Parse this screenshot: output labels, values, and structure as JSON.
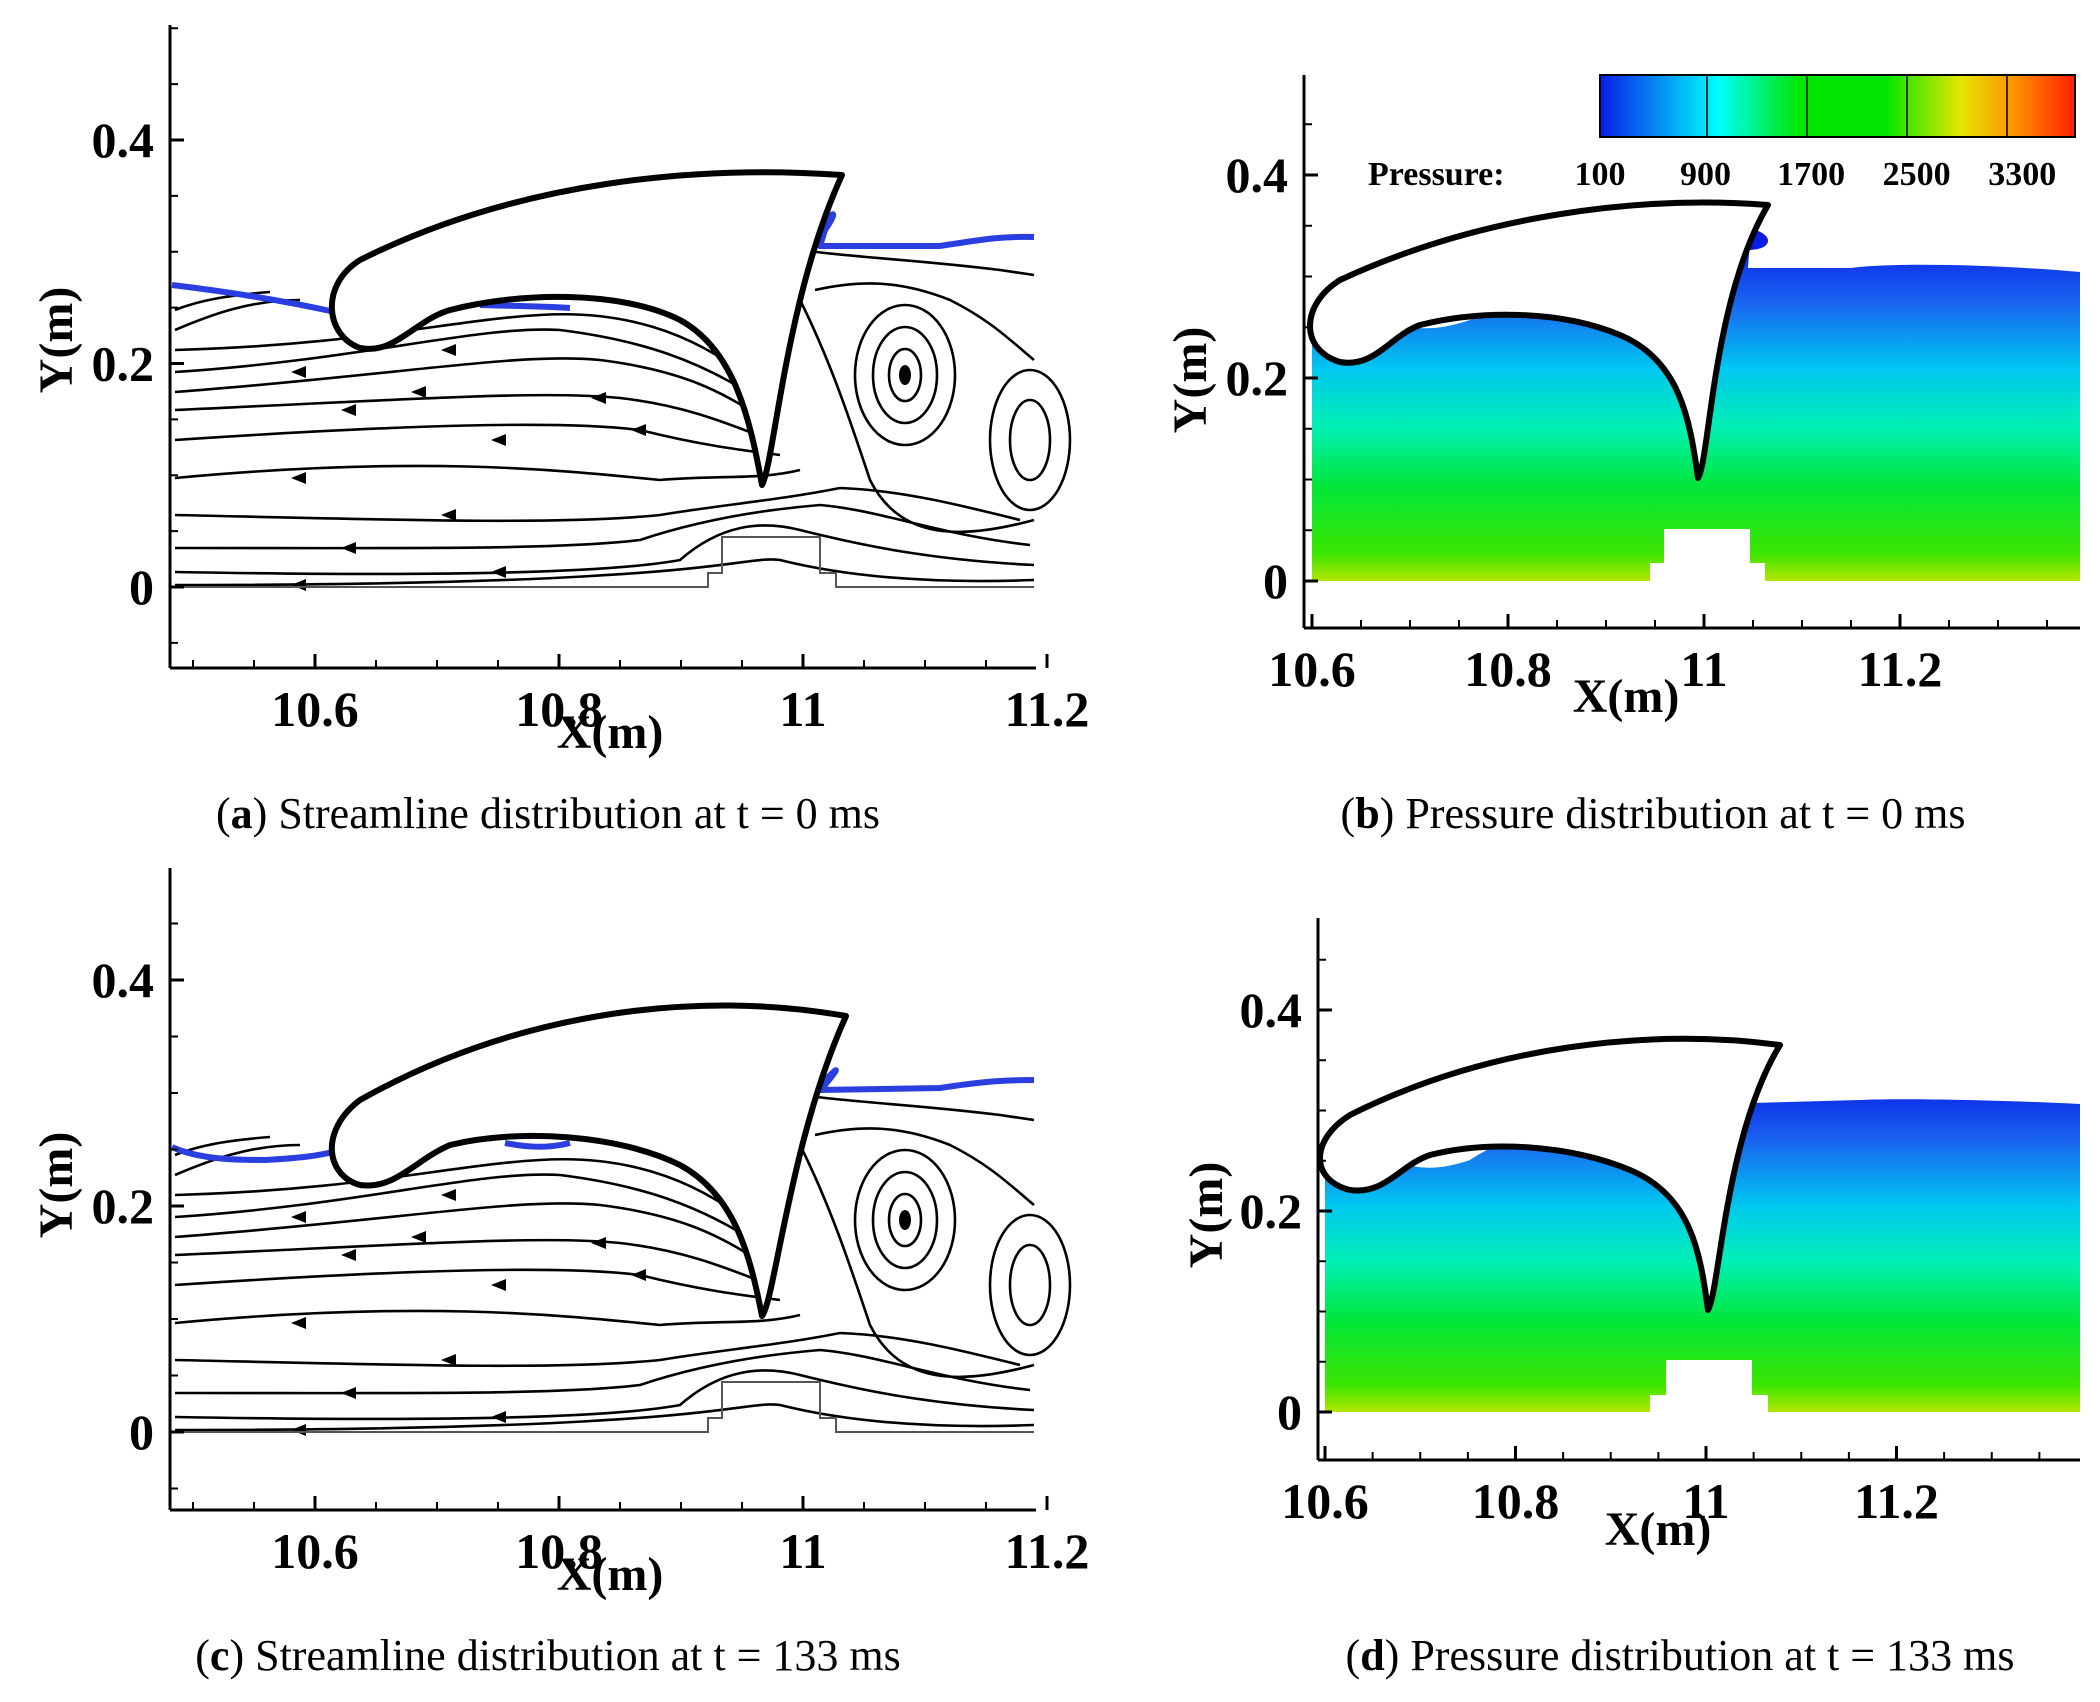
{
  "chart_data": [
    {
      "id": "a",
      "type": "streamline",
      "xlim": [
        10.47,
        11.23
      ],
      "ylim": [
        -0.07,
        0.49
      ],
      "xticks": [
        "10.6",
        "10.8",
        "11",
        "11.2"
      ],
      "yticks": [
        "0",
        "0.2",
        "0.4"
      ],
      "xlabel": "X(m)",
      "ylabel": "Y(m)",
      "caption_letter": "a",
      "caption_text": " Streamline distribution at t = 0 ms",
      "time_ms": 0
    },
    {
      "id": "b",
      "type": "contour",
      "variable": "Pressure",
      "xlim": [
        10.6,
        11.36
      ],
      "ylim": [
        -0.05,
        0.5
      ],
      "xticks": [
        "10.6",
        "10.8",
        "11",
        "11.2"
      ],
      "yticks": [
        "0",
        "0.2",
        "0.4"
      ],
      "xlabel": "X(m)",
      "ylabel": "Y(m)",
      "colorbar_title": "Pressure:",
      "colorbar_ticks": [
        "100",
        "900",
        "1700",
        "2500",
        "3300"
      ],
      "colorbar_range": [
        100,
        3700
      ],
      "colors": {
        "low": "#0a1ee6",
        "mid": "#00ffd2",
        "high_mid": "#00e600",
        "high": "#ff2b00"
      },
      "caption_letter": "b",
      "caption_text": " Pressure distribution at t = 0 ms",
      "time_ms": 0
    },
    {
      "id": "c",
      "type": "streamline",
      "xlim": [
        10.47,
        11.23
      ],
      "ylim": [
        -0.07,
        0.49
      ],
      "xticks": [
        "10.6",
        "10.8",
        "11",
        "11.2"
      ],
      "yticks": [
        "0",
        "0.2",
        "0.4"
      ],
      "xlabel": "X(m)",
      "ylabel": "Y(m)",
      "caption_letter": "c",
      "caption_text": " Streamline distribution at t = 133 ms",
      "time_ms": 133
    },
    {
      "id": "d",
      "type": "contour",
      "variable": "Pressure",
      "xlim": [
        10.6,
        11.36
      ],
      "ylim": [
        -0.05,
        0.5
      ],
      "xticks": [
        "10.6",
        "10.8",
        "11",
        "11.2"
      ],
      "yticks": [
        "0",
        "0.2",
        "0.4"
      ],
      "xlabel": "X(m)",
      "ylabel": "Y(m)",
      "caption_letter": "d",
      "caption_text": " Pressure distribution at t = 133 ms",
      "time_ms": 133
    }
  ],
  "colors": {
    "free_surface": "#2b3fe0",
    "axis": "#000000"
  }
}
